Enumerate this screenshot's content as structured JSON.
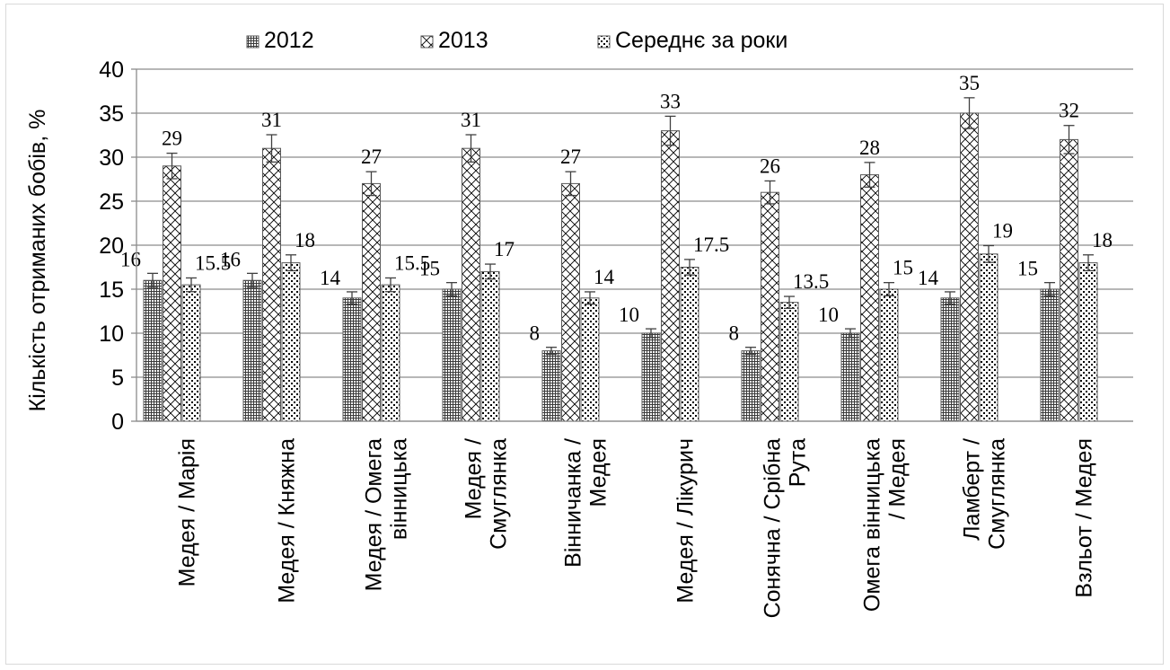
{
  "chart_data": {
    "type": "bar",
    "title": "",
    "xlabel": "",
    "ylabel": "Кількість отриманих бобів, %",
    "ylim": [
      0,
      40
    ],
    "yticks": [
      "0",
      "5",
      "10",
      "15",
      "20",
      "25",
      "30",
      "35",
      "40"
    ],
    "grid": true,
    "legend_position": "top",
    "categories": [
      [
        "Медея / Марія"
      ],
      [
        "Медея / Княжна"
      ],
      [
        "Медея / Омега",
        "вінницька"
      ],
      [
        "Медея /",
        "Смуглянка"
      ],
      [
        "Вінничанка /",
        "Медея"
      ],
      [
        "Медея / Лікурич"
      ],
      [
        "Сонячна / Срібна",
        "Рута"
      ],
      [
        "Омега вінницька",
        "/ Медея"
      ],
      [
        "Ламберт /",
        "Смуглянка"
      ],
      [
        "Взльот / Медея"
      ]
    ],
    "series": [
      {
        "name": "2012",
        "pattern": "dense-grid",
        "values": [
          16,
          16,
          14,
          15,
          8,
          10,
          8,
          10,
          14,
          15
        ],
        "labels": [
          "16",
          "16",
          "14",
          "15",
          "8",
          "10",
          "8",
          "10",
          "14",
          "15"
        ],
        "errors": [
          0.8,
          0.8,
          0.7,
          0.75,
          0.4,
          0.5,
          0.4,
          0.5,
          0.7,
          0.75
        ]
      },
      {
        "name": "2013",
        "pattern": "diagonal-cross",
        "values": [
          29,
          31,
          27,
          31,
          27,
          33,
          26,
          28,
          35,
          32
        ],
        "labels": [
          "29",
          "31",
          "27",
          "31",
          "27",
          "33",
          "26",
          "28",
          "35",
          "32"
        ],
        "errors": [
          1.45,
          1.55,
          1.35,
          1.55,
          1.35,
          1.65,
          1.3,
          1.4,
          1.75,
          1.6
        ]
      },
      {
        "name": "Середнє за роки",
        "pattern": "dots",
        "values": [
          15.5,
          18,
          15.5,
          17,
          14,
          17.5,
          13.5,
          15,
          19,
          18
        ],
        "labels": [
          "15.5",
          "18",
          "15.5",
          "17",
          "14",
          "17.5",
          "13.5",
          "15",
          "19",
          "18"
        ],
        "errors": [
          0.78,
          0.9,
          0.78,
          0.85,
          0.7,
          0.88,
          0.68,
          0.75,
          0.95,
          0.9
        ]
      }
    ],
    "colors": {
      "bar_outline": "#595959",
      "grid": "#8c8c8c",
      "text": "#000000",
      "error_bar": "#404040"
    }
  }
}
